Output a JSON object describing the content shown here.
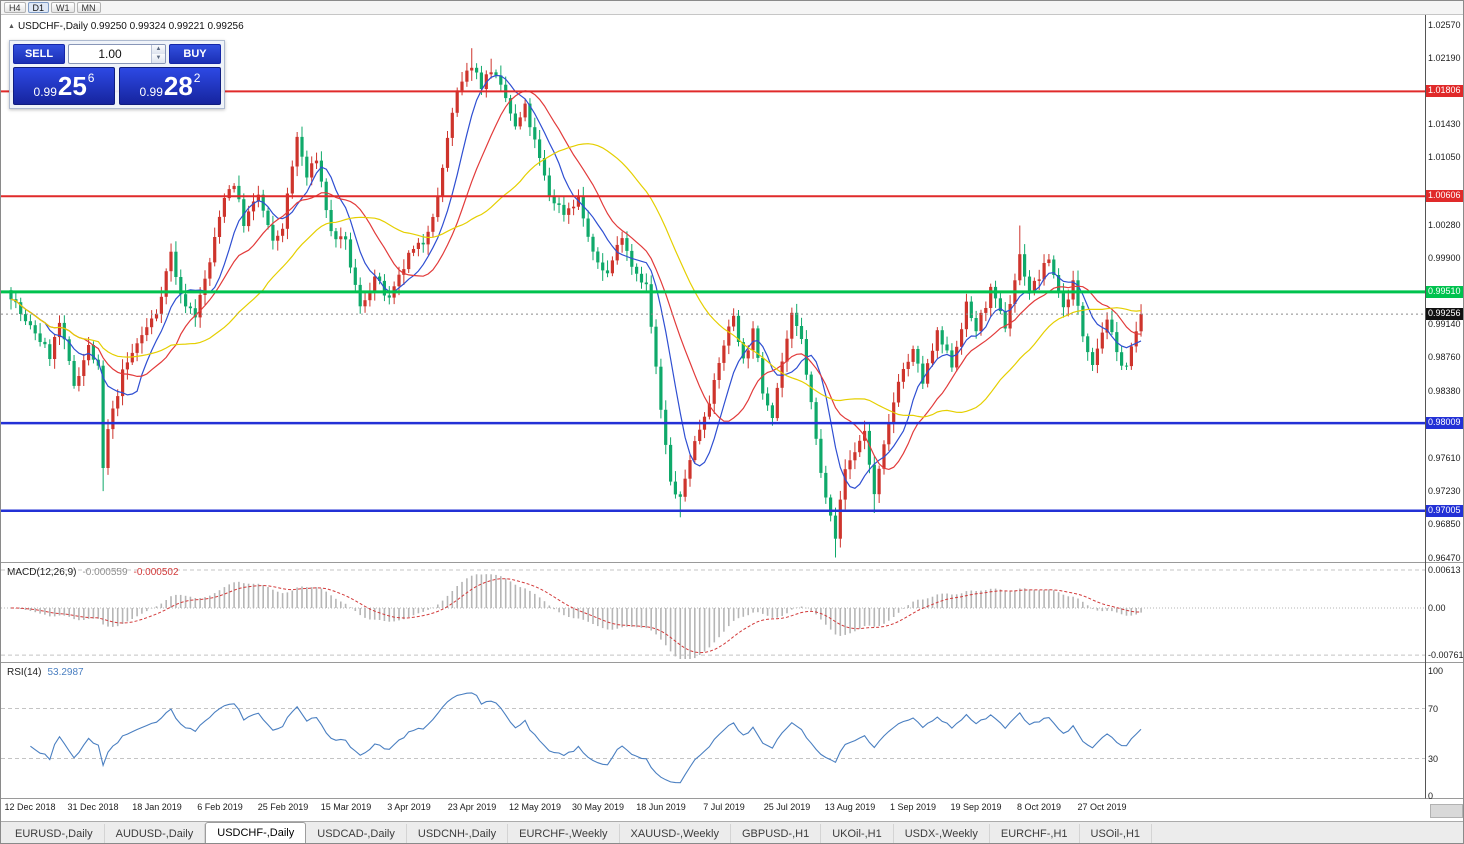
{
  "toolbar": {
    "timeframes": [
      {
        "label": "H4",
        "active": false
      },
      {
        "label": "D1",
        "active": true
      },
      {
        "label": "W1",
        "active": false
      },
      {
        "label": "MN",
        "active": false
      }
    ]
  },
  "symbol_info": {
    "symbol": "USDCHF-,Daily",
    "ohlc": "0.99250 0.99324 0.99221 0.99256"
  },
  "trade_panel": {
    "sell_label": "SELL",
    "buy_label": "BUY",
    "volume": "1.00",
    "sell_price_small": "0.99",
    "sell_price_big": "25",
    "sell_price_sup": "6",
    "buy_price_small": "0.99",
    "buy_price_big": "28",
    "buy_price_sup": "2"
  },
  "indicators": {
    "macd": {
      "name": "MACD(12,26,9)",
      "value_main": "-0.000559",
      "value_signal": "-0.000502"
    },
    "rsi": {
      "name": "RSI(14)",
      "value": "53.2987"
    }
  },
  "tabs": [
    {
      "label": "EURUSD-,Daily",
      "active": false
    },
    {
      "label": "AUDUSD-,Daily",
      "active": false
    },
    {
      "label": "USDCHF-,Daily",
      "active": true
    },
    {
      "label": "USDCAD-,Daily",
      "active": false
    },
    {
      "label": "USDCNH-,Daily",
      "active": false
    },
    {
      "label": "EURCHF-,Weekly",
      "active": false
    },
    {
      "label": "XAUUSD-,Weekly",
      "active": false
    },
    {
      "label": "GBPUSD-,H1",
      "active": false
    },
    {
      "label": "UKOil-,H1",
      "active": false
    },
    {
      "label": "USDX-,Weekly",
      "active": false
    },
    {
      "label": "EURCHF-,H1",
      "active": false
    },
    {
      "label": "USOil-,H1",
      "active": false
    }
  ],
  "chart_data": {
    "type": "candlestick",
    "symbol": "USDCHF-",
    "timeframe": "Daily",
    "title": "USDCHF-,Daily",
    "ohlc_display": {
      "open": "0.99250",
      "high": "0.99324",
      "low": "0.99221",
      "close": "0.99256"
    },
    "num_candles": 234,
    "seed": 7,
    "x_labels": [
      "12 Dec 2018",
      "31 Dec 2018",
      "18 Jan 2019",
      "6 Feb 2019",
      "25 Feb 2019",
      "15 Mar 2019",
      "3 Apr 2019",
      "23 Apr 2019",
      "12 May 2019",
      "30 May 2019",
      "18 Jun 2019",
      "7 Jul 2019",
      "25 Jul 2019",
      "13 Aug 2019",
      "1 Sep 2019",
      "19 Sep 2019",
      "8 Oct 2019",
      "27 Oct 2019"
    ],
    "first_label_index": 4,
    "candles_per_label": 13,
    "y_axis": {
      "min": 0.9643,
      "max": 1.0268,
      "ticks": [
        {
          "label": "1.02570",
          "value": 1.0257
        },
        {
          "label": "1.02190",
          "value": 1.0219
        },
        {
          "label": "1.01430",
          "value": 1.0143
        },
        {
          "label": "1.01050",
          "value": 1.0105
        },
        {
          "label": "1.00280",
          "value": 1.0028
        },
        {
          "label": "0.99900",
          "value": 0.999
        },
        {
          "label": "0.99140",
          "value": 0.9914
        },
        {
          "label": "0.98760",
          "value": 0.9876
        },
        {
          "label": "0.98380",
          "value": 0.9838
        },
        {
          "label": "0.97610",
          "value": 0.9761
        },
        {
          "label": "0.97230",
          "value": 0.9723
        },
        {
          "label": "0.96850",
          "value": 0.9685
        },
        {
          "label": "0.96470",
          "value": 0.9647
        }
      ]
    },
    "h_lines": [
      {
        "label": "1.01806",
        "value": 1.01806,
        "color": "#e02a2a",
        "width": 2
      },
      {
        "label": "1.00606",
        "value": 1.00606,
        "color": "#e02a2a",
        "width": 2
      },
      {
        "label": "0.99510",
        "value": 0.9951,
        "color": "#00c24e",
        "width": 3
      },
      {
        "label": "0.98009",
        "value": 0.98009,
        "color": "#2331d6",
        "width": 2.5
      },
      {
        "label": "0.97005",
        "value": 0.97005,
        "color": "#2331d6",
        "width": 2.5
      }
    ],
    "current_price": {
      "label": "0.99256",
      "value": 0.99256,
      "badge_color": "#111111"
    },
    "colors": {
      "up": "#ce342c",
      "down": "#0fa96a",
      "ma_fast": "#2f4fd2",
      "ma_mid": "#e23b3b",
      "ma_slow": "#e5cf00",
      "macd_hist": "#b6b6b6",
      "macd_signal": "#d23a3a",
      "rsi_line": "#4a7fc1"
    },
    "moving_averages": [
      {
        "period": 8,
        "colorKey": "ma_fast"
      },
      {
        "period": 16,
        "colorKey": "ma_mid"
      },
      {
        "period": 34,
        "colorKey": "ma_slow"
      }
    ],
    "macd_axis": [
      {
        "label": "0.00613",
        "value": 0.00613
      },
      {
        "label": "0.00",
        "value": 0
      },
      {
        "label": "-0.00761",
        "value": -0.00761
      }
    ],
    "rsi_axis": [
      {
        "label": "100",
        "value": 100
      },
      {
        "label": "70",
        "value": 70
      },
      {
        "label": "30",
        "value": 30
      },
      {
        "label": "0",
        "value": 0
      }
    ],
    "rsi_levels": [
      70,
      30
    ],
    "price_path_anchors": [
      [
        0,
        0.9948
      ],
      [
        3,
        0.9915
      ],
      [
        5,
        0.9905
      ],
      [
        8,
        0.9878
      ],
      [
        10,
        0.9915
      ],
      [
        13,
        0.9845
      ],
      [
        16,
        0.9888
      ],
      [
        18,
        0.9862
      ],
      [
        19,
        0.9748
      ],
      [
        20,
        0.9792
      ],
      [
        23,
        0.9858
      ],
      [
        26,
        0.9892
      ],
      [
        30,
        0.9928
      ],
      [
        33,
        0.9996
      ],
      [
        35,
        0.9945
      ],
      [
        38,
        0.9925
      ],
      [
        41,
        0.9985
      ],
      [
        44,
        1.0062
      ],
      [
        46,
        1.0076
      ],
      [
        48,
        1.003
      ],
      [
        51,
        1.0062
      ],
      [
        54,
        1.0006
      ],
      [
        56,
        1.0026
      ],
      [
        59,
        1.0128
      ],
      [
        61,
        1.0082
      ],
      [
        63,
        1.0105
      ],
      [
        66,
        1.0018
      ],
      [
        69,
        1.0006
      ],
      [
        72,
        0.9932
      ],
      [
        75,
        0.9968
      ],
      [
        78,
        0.994
      ],
      [
        82,
        0.9992
      ],
      [
        85,
        1.0008
      ],
      [
        88,
        1.0058
      ],
      [
        90,
        1.0128
      ],
      [
        92,
        1.0178
      ],
      [
        95,
        1.0212
      ],
      [
        97,
        1.0188
      ],
      [
        99,
        1.0206
      ],
      [
        102,
        1.0172
      ],
      [
        104,
        1.0138
      ],
      [
        106,
        1.0162
      ],
      [
        108,
        1.0122
      ],
      [
        111,
        1.0062
      ],
      [
        114,
        1.0042
      ],
      [
        117,
        1.0058
      ],
      [
        120,
        0.9992
      ],
      [
        123,
        0.9972
      ],
      [
        126,
        1.0018
      ],
      [
        128,
        0.9982
      ],
      [
        131,
        0.9958
      ],
      [
        134,
        0.9815
      ],
      [
        136,
        0.9732
      ],
      [
        138,
        0.9712
      ],
      [
        140,
        0.9762
      ],
      [
        143,
        0.9812
      ],
      [
        145,
        0.9845
      ],
      [
        147,
        0.9892
      ],
      [
        149,
        0.9925
      ],
      [
        151,
        0.9872
      ],
      [
        153,
        0.9905
      ],
      [
        155,
        0.9838
      ],
      [
        157,
        0.9812
      ],
      [
        159,
        0.9872
      ],
      [
        161,
        0.9922
      ],
      [
        163,
        0.9895
      ],
      [
        165,
        0.9822
      ],
      [
        167,
        0.9742
      ],
      [
        169,
        0.97
      ],
      [
        170,
        0.9672
      ],
      [
        172,
        0.9748
      ],
      [
        173,
        0.9758
      ],
      [
        176,
        0.9792
      ],
      [
        178,
        0.9718
      ],
      [
        180,
        0.9772
      ],
      [
        183,
        0.9852
      ],
      [
        186,
        0.9882
      ],
      [
        188,
        0.9848
      ],
      [
        191,
        0.9902
      ],
      [
        194,
        0.9868
      ],
      [
        197,
        0.9935
      ],
      [
        199,
        0.9908
      ],
      [
        202,
        0.9952
      ],
      [
        205,
        0.9912
      ],
      [
        208,
        0.9992
      ],
      [
        210,
        0.9952
      ],
      [
        212,
        0.9968
      ],
      [
        214,
        0.999
      ],
      [
        217,
        0.9932
      ],
      [
        219,
        0.9962
      ],
      [
        221,
        0.9902
      ],
      [
        223,
        0.9872
      ],
      [
        225,
        0.9906
      ],
      [
        226,
        0.9922
      ],
      [
        228,
        0.9878
      ],
      [
        230,
        0.9866
      ],
      [
        231,
        0.9885
      ],
      [
        233,
        0.99256
      ]
    ],
    "special_wicks": [
      {
        "i": 19,
        "low": 0.9723
      },
      {
        "i": 95,
        "high": 1.023
      },
      {
        "i": 99,
        "high": 1.0218
      },
      {
        "i": 138,
        "low": 0.9693
      },
      {
        "i": 170,
        "low": 0.9647
      },
      {
        "i": 178,
        "low": 0.9698
      },
      {
        "i": 208,
        "high": 1.0027
      }
    ]
  }
}
